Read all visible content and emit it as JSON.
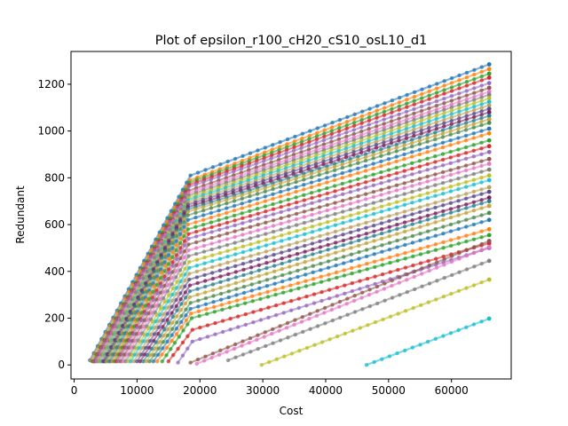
{
  "chart_data": {
    "type": "line",
    "title": "Plot of epsilon_r100_cH20_cS10_osL10_d1",
    "xlabel": "Cost",
    "ylabel": "Redundant",
    "xlim": [
      -500,
      69500
    ],
    "ylim": [
      -60,
      1340
    ],
    "xticks": [
      0,
      10000,
      20000,
      30000,
      40000,
      50000,
      60000
    ],
    "xtick_labels": [
      "0",
      "10000",
      "20000",
      "30000",
      "40000",
      "50000",
      "60000"
    ],
    "yticks": [
      0,
      200,
      400,
      600,
      800,
      1000,
      1200
    ],
    "ytick_labels": [
      "0",
      "200",
      "400",
      "600",
      "800",
      "1000",
      "1200"
    ],
    "grid": false,
    "legend": "none",
    "marker": "circle",
    "series_style": {
      "palette": [
        "#1f77b4",
        "#ff7f0e",
        "#2ca02c",
        "#d62728",
        "#9467bd",
        "#8c564b",
        "#e377c2",
        "#7f7f7f",
        "#bcbd22",
        "#17becf",
        "#b9a05a",
        "#5b4a8a",
        "#7a1f5c",
        "#2a7f8f",
        "#c2a23a",
        "#4e8a4e"
      ],
      "alpha": 0.55
    },
    "series": [
      {
        "x": [
          2500,
          18500,
          66000
        ],
        "y": [
          20,
          810,
          1285
        ]
      },
      {
        "x": [
          2700,
          18400,
          66000
        ],
        "y": [
          18,
          790,
          1265
        ]
      },
      {
        "x": [
          2900,
          18300,
          66000
        ],
        "y": [
          15,
          780,
          1245
        ]
      },
      {
        "x": [
          3100,
          18300,
          66000
        ],
        "y": [
          15,
          770,
          1228
        ]
      },
      {
        "x": [
          3200,
          18200,
          66000
        ],
        "y": [
          15,
          760,
          1205
        ]
      },
      {
        "x": [
          3400,
          18200,
          66000
        ],
        "y": [
          15,
          745,
          1185
        ]
      },
      {
        "x": [
          3600,
          18200,
          66000
        ],
        "y": [
          15,
          735,
          1168
        ]
      },
      {
        "x": [
          3800,
          18200,
          66000
        ],
        "y": [
          15,
          725,
          1155
        ]
      },
      {
        "x": [
          4000,
          18200,
          66000
        ],
        "y": [
          15,
          715,
          1140
        ]
      },
      {
        "x": [
          4200,
          18100,
          66000
        ],
        "y": [
          15,
          705,
          1125
        ]
      },
      {
        "x": [
          4400,
          18100,
          66000
        ],
        "y": [
          15,
          695,
          1110
        ]
      },
      {
        "x": [
          4600,
          18100,
          66000
        ],
        "y": [
          15,
          685,
          1095
        ]
      },
      {
        "x": [
          4800,
          18100,
          66000
        ],
        "y": [
          15,
          675,
          1080
        ]
      },
      {
        "x": [
          5000,
          18100,
          66000
        ],
        "y": [
          15,
          665,
          1065
        ]
      },
      {
        "x": [
          5200,
          18100,
          66000
        ],
        "y": [
          15,
          655,
          1050
        ]
      },
      {
        "x": [
          5500,
          18100,
          66000
        ],
        "y": [
          15,
          640,
          1035
        ]
      },
      {
        "x": [
          5800,
          18100,
          66000
        ],
        "y": [
          15,
          620,
          1010
        ]
      },
      {
        "x": [
          6100,
          18100,
          66000
        ],
        "y": [
          15,
          600,
          990
        ]
      },
      {
        "x": [
          6400,
          18100,
          66000
        ],
        "y": [
          15,
          580,
          960
        ]
      },
      {
        "x": [
          6700,
          18200,
          66000
        ],
        "y": [
          15,
          560,
          935
        ]
      },
      {
        "x": [
          7000,
          18200,
          66000
        ],
        "y": [
          15,
          540,
          910
        ]
      },
      {
        "x": [
          7400,
          18200,
          66000
        ],
        "y": [
          15,
          515,
          880
        ]
      },
      {
        "x": [
          7800,
          18200,
          66000
        ],
        "y": [
          15,
          490,
          860
        ]
      },
      {
        "x": [
          8200,
          18200,
          66000
        ],
        "y": [
          15,
          465,
          835
        ]
      },
      {
        "x": [
          8600,
          18300,
          66000
        ],
        "y": [
          15,
          440,
          810
        ]
      },
      {
        "x": [
          9000,
          18300,
          66000
        ],
        "y": [
          15,
          415,
          790
        ]
      },
      {
        "x": [
          9500,
          18300,
          66000
        ],
        "y": [
          15,
          390,
          760
        ]
      },
      {
        "x": [
          10000,
          18300,
          66000
        ],
        "y": [
          15,
          365,
          740
        ]
      },
      {
        "x": [
          10500,
          18400,
          66000
        ],
        "y": [
          15,
          340,
          715
        ]
      },
      {
        "x": [
          11000,
          18400,
          66000
        ],
        "y": [
          15,
          315,
          700
        ]
      },
      {
        "x": [
          11500,
          18400,
          66000
        ],
        "y": [
          15,
          290,
          680
        ]
      },
      {
        "x": [
          12000,
          18500,
          66000
        ],
        "y": [
          15,
          265,
          650
        ]
      },
      {
        "x": [
          12600,
          18500,
          66000
        ],
        "y": [
          15,
          240,
          620
        ]
      },
      {
        "x": [
          13200,
          18600,
          66000
        ],
        "y": [
          15,
          220,
          580
        ]
      },
      {
        "x": [
          14000,
          18700,
          66000
        ],
        "y": [
          15,
          200,
          555
        ]
      },
      {
        "x": [
          15000,
          18800,
          66000
        ],
        "y": [
          15,
          150,
          520
        ]
      },
      {
        "x": [
          16500,
          18800,
          66000
        ],
        "y": [
          10,
          100,
          500
        ]
      },
      {
        "x": [
          18500,
          66000
        ],
        "y": [
          10,
          530
        ]
      },
      {
        "x": [
          19500,
          66000
        ],
        "y": [
          5,
          505
        ]
      },
      {
        "x": [
          24500,
          66000
        ],
        "y": [
          20,
          445
        ]
      },
      {
        "x": [
          29800,
          66000
        ],
        "y": [
          0,
          365
        ]
      },
      {
        "x": [
          46500,
          66000
        ],
        "y": [
          0,
          198
        ]
      }
    ]
  }
}
